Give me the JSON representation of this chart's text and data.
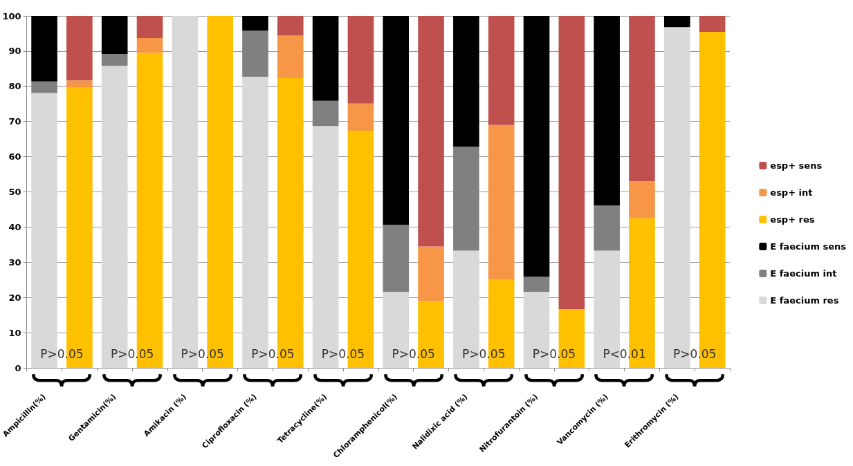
{
  "chart_data": {
    "type": "bar",
    "stacked": true,
    "categories": [
      "Ampicillin(%)",
      null,
      "Gentamicin(%)",
      null,
      "Amikacin (%)",
      null,
      "Ciprofloxacin (%)",
      null,
      "Tetracycline(%)",
      null,
      "Chloramphenicol(%)",
      null,
      "Nalidixic acid (%)",
      null,
      "Nitrofurantoin (%)",
      null,
      "Vancomycin (%)",
      null,
      "Erithromycin (%)",
      null
    ],
    "series": [
      {
        "name": "E faecium res",
        "color": "#d9d9d9",
        "values": [
          78.1,
          null,
          85.8,
          null,
          100,
          null,
          82.7,
          null,
          68.7,
          null,
          21.6,
          null,
          33.3,
          null,
          21.6,
          null,
          33.3,
          null,
          96.8,
          null
        ]
      },
      {
        "name": "E faecium int",
        "color": "#808080",
        "values": [
          3.3,
          null,
          3.4,
          null,
          0,
          null,
          13.1,
          null,
          7.2,
          null,
          19.0,
          null,
          29.5,
          null,
          4.3,
          null,
          12.8,
          null,
          0,
          null
        ]
      },
      {
        "name": "E faecium sens",
        "color": "#000000",
        "values": [
          18.6,
          null,
          10.8,
          null,
          0,
          null,
          4.2,
          null,
          24.1,
          null,
          59.4,
          null,
          37.2,
          null,
          74.1,
          null,
          53.9,
          null,
          3.2,
          null
        ]
      },
      {
        "name": "esp+ res",
        "color": "#ffc000",
        "values": [
          null,
          79.6,
          null,
          89.5,
          null,
          100,
          null,
          82.3,
          null,
          67.4,
          null,
          18.9,
          null,
          25.0,
          null,
          16.7,
          null,
          42.6,
          null,
          95.5
        ]
      },
      {
        "name": "esp+ int",
        "color": "#f79646",
        "values": [
          null,
          2.1,
          null,
          4.2,
          null,
          0,
          null,
          12.1,
          null,
          7.7,
          null,
          15.6,
          null,
          44.0,
          null,
          0,
          null,
          10.4,
          null,
          0
        ]
      },
      {
        "name": "esp+ sens",
        "color": "#c0504d",
        "values": [
          null,
          18.3,
          null,
          6.3,
          null,
          0,
          null,
          5.6,
          null,
          24.9,
          null,
          65.5,
          null,
          31.0,
          null,
          83.3,
          null,
          47.0,
          null,
          4.5
        ]
      }
    ],
    "ylim": [
      0,
      100
    ],
    "yticks": [
      0,
      10,
      20,
      30,
      40,
      50,
      60,
      70,
      80,
      90,
      100
    ],
    "grid": "y",
    "legend": "right",
    "annotations": [
      "P>0.05",
      "P>0.05",
      "P>0.05",
      "P>0.05",
      "P>0.05",
      "P>0.05",
      "P>0.05",
      "P>0.05",
      "P<0.01",
      "P>0.05"
    ]
  }
}
